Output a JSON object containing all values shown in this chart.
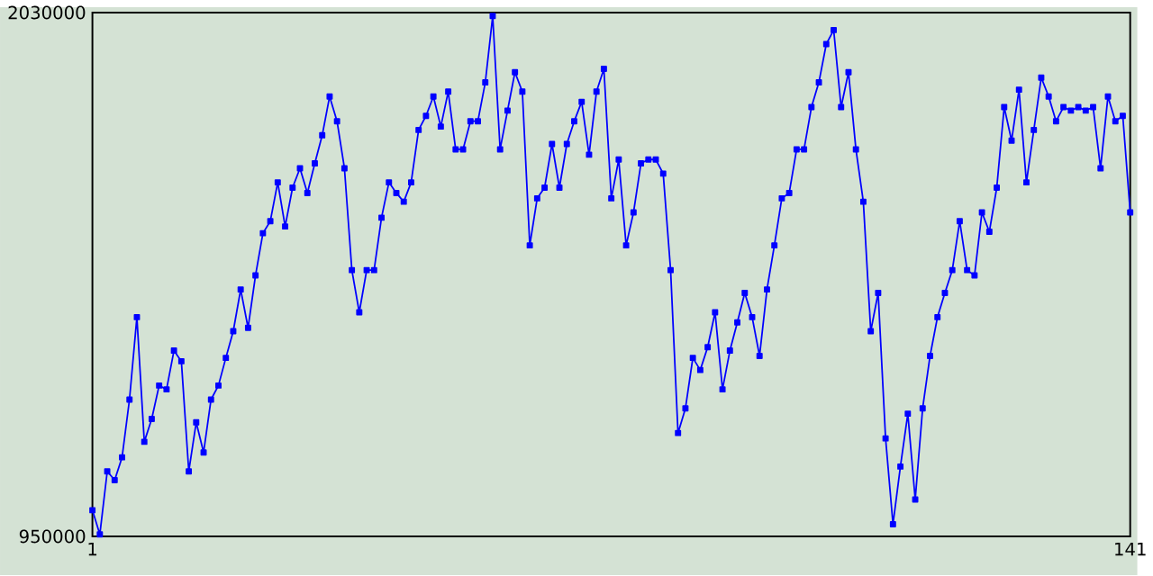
{
  "chart_data": {
    "type": "line",
    "marker": "square",
    "line_style": "solid",
    "x": [
      1,
      2,
      3,
      4,
      5,
      6,
      7,
      8,
      9,
      10,
      11,
      12,
      13,
      14,
      15,
      16,
      17,
      18,
      19,
      20,
      21,
      22,
      23,
      24,
      25,
      26,
      27,
      28,
      29,
      30,
      31,
      32,
      33,
      34,
      35,
      36,
      37,
      38,
      39,
      40,
      41,
      42,
      43,
      44,
      45,
      46,
      47,
      48,
      49,
      50,
      51,
      52,
      53,
      54,
      55,
      56,
      57,
      58,
      59,
      60,
      61,
      62,
      63,
      64,
      65,
      66,
      67,
      68,
      69,
      70,
      71,
      72,
      73,
      74,
      75,
      76,
      77,
      78,
      79,
      80,
      81,
      82,
      83,
      84,
      85,
      86,
      87,
      88,
      89,
      90,
      91,
      92,
      93,
      94,
      95,
      96,
      97,
      98,
      99,
      100,
      101,
      102,
      103,
      104,
      105,
      106,
      107,
      108,
      109,
      110,
      111,
      112,
      113,
      114,
      115,
      116,
      117,
      118,
      119,
      120,
      121,
      122,
      123,
      124,
      125,
      126,
      127,
      128,
      129,
      130,
      131,
      132,
      133,
      134,
      135,
      136,
      137,
      138,
      139,
      140,
      141
    ],
    "series": [
      {
        "color": "#0000ff",
        "values": [
          1004000,
          954000,
          1084000,
          1066000,
          1113000,
          1232000,
          1402000,
          1145000,
          1192000,
          1261000,
          1253000,
          1333000,
          1311000,
          1084000,
          1185000,
          1123000,
          1232000,
          1261000,
          1318000,
          1373000,
          1459000,
          1380000,
          1488000,
          1575000,
          1600000,
          1680000,
          1589000,
          1669000,
          1709000,
          1658000,
          1719000,
          1777000,
          1857000,
          1806000,
          1709000,
          1499000,
          1412000,
          1499000,
          1499000,
          1607000,
          1680000,
          1658000,
          1640000,
          1680000,
          1788000,
          1817000,
          1857000,
          1795000,
          1867000,
          1748000,
          1748000,
          1806000,
          1806000,
          1886000,
          2023000,
          1748000,
          1828000,
          1907000,
          1867000,
          1550000,
          1647000,
          1669000,
          1759000,
          1669000,
          1759000,
          1806000,
          1846000,
          1737000,
          1867000,
          1914000,
          1647000,
          1727000,
          1550000,
          1618000,
          1719000,
          1727000,
          1727000,
          1698000,
          1499000,
          1163000,
          1214000,
          1318000,
          1293000,
          1340000,
          1412000,
          1253000,
          1333000,
          1391000,
          1452000,
          1402000,
          1322000,
          1459000,
          1550000,
          1647000,
          1658000,
          1748000,
          1748000,
          1835000,
          1886000,
          1965000,
          1994000,
          1835000,
          1907000,
          1748000,
          1640000,
          1373000,
          1452000,
          1152000,
          975000,
          1094000,
          1203000,
          1026000,
          1214000,
          1322000,
          1402000,
          1452000,
          1499000,
          1600000,
          1499000,
          1488000,
          1618000,
          1578000,
          1669000,
          1835000,
          1766000,
          1871000,
          1680000,
          1788000,
          1896000,
          1857000,
          1806000,
          1835000,
          1828000,
          1835000,
          1828000,
          1835000,
          1709000,
          1857000,
          1806000,
          1817000,
          1618000
        ]
      }
    ],
    "xlim": [
      1,
      141
    ],
    "xticks": [
      1,
      141
    ],
    "ylim": [
      950000,
      2030000
    ],
    "yticks": [
      950000,
      2030000
    ]
  }
}
